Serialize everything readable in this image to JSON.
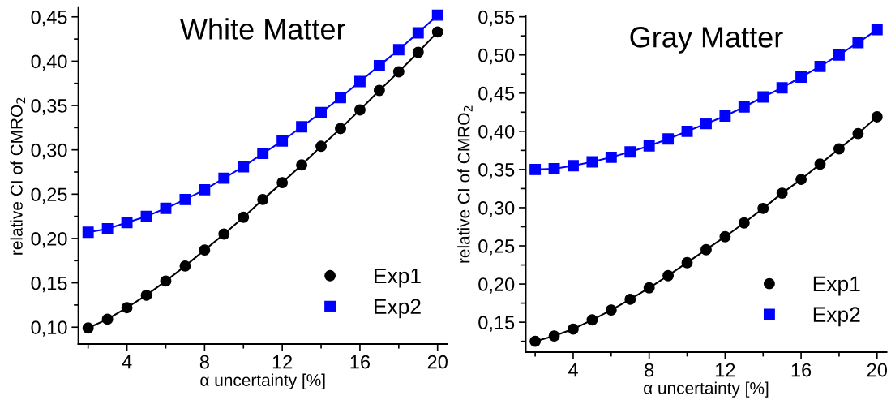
{
  "chart_data": [
    {
      "type": "line",
      "title": "White Matter",
      "xlabel": "α uncertainty [%]",
      "ylabel": "relative CI of CMRO$_{2}$",
      "x": [
        2,
        3,
        4,
        5,
        6,
        7,
        8,
        9,
        10,
        11,
        12,
        13,
        14,
        15,
        16,
        17,
        18,
        19,
        20
      ],
      "series": [
        {
          "name": "Exp1",
          "color": "#000000",
          "marker": "circle",
          "values": [
            0.099,
            0.109,
            0.122,
            0.136,
            0.152,
            0.169,
            0.187,
            0.205,
            0.224,
            0.244,
            0.263,
            0.283,
            0.304,
            0.324,
            0.345,
            0.367,
            0.388,
            0.41,
            0.433
          ]
        },
        {
          "name": "Exp2",
          "color": "#0000ff",
          "marker": "square",
          "values": [
            0.207,
            0.211,
            0.218,
            0.225,
            0.234,
            0.244,
            0.255,
            0.268,
            0.281,
            0.296,
            0.31,
            0.326,
            0.342,
            0.359,
            0.377,
            0.395,
            0.413,
            0.432,
            0.452
          ]
        }
      ],
      "xlim": [
        1.5,
        20.5
      ],
      "xticks": [
        4,
        8,
        12,
        16,
        20
      ],
      "ylim": [
        0.081,
        0.46
      ],
      "yticks": [
        {
          "value": 0.1,
          "label": "0,10"
        },
        {
          "value": 0.15,
          "label": "0,15"
        },
        {
          "value": 0.2,
          "label": "0,20"
        },
        {
          "value": 0.25,
          "label": "0,25"
        },
        {
          "value": 0.3,
          "label": "0,30"
        },
        {
          "value": 0.35,
          "label": "0,35"
        },
        {
          "value": 0.4,
          "label": "0,40"
        },
        {
          "value": 0.45,
          "label": "0,45"
        }
      ],
      "legend": "bottom right",
      "grid": false,
      "line_style": "solid"
    },
    {
      "type": "line",
      "title": "Gray Matter",
      "xlabel": "α uncertainty [%]",
      "ylabel": "relative CI of CMRO$_{2}$",
      "x": [
        2,
        3,
        4,
        5,
        6,
        7,
        8,
        9,
        10,
        11,
        12,
        13,
        14,
        15,
        16,
        17,
        18,
        19,
        20
      ],
      "series": [
        {
          "name": "Exp1",
          "color": "#000000",
          "marker": "circle",
          "values": [
            0.125,
            0.132,
            0.141,
            0.153,
            0.166,
            0.18,
            0.195,
            0.211,
            0.228,
            0.245,
            0.262,
            0.28,
            0.299,
            0.319,
            0.337,
            0.357,
            0.377,
            0.397,
            0.419
          ]
        },
        {
          "name": "Exp2",
          "color": "#0000ff",
          "marker": "square",
          "values": [
            0.35,
            0.351,
            0.355,
            0.36,
            0.366,
            0.373,
            0.381,
            0.39,
            0.4,
            0.41,
            0.42,
            0.432,
            0.445,
            0.457,
            0.471,
            0.485,
            0.5,
            0.516,
            0.533
          ]
        }
      ],
      "xlim": [
        1.5,
        20.5
      ],
      "xticks": [
        4,
        8,
        12,
        16,
        20
      ],
      "ylim": [
        0.111,
        0.551
      ],
      "yticks": [
        {
          "value": 0.15,
          "label": "0,15"
        },
        {
          "value": 0.2,
          "label": "0,20"
        },
        {
          "value": 0.25,
          "label": "0,25"
        },
        {
          "value": 0.3,
          "label": "0,30"
        },
        {
          "value": 0.35,
          "label": "0,35"
        },
        {
          "value": 0.4,
          "label": "0,40"
        },
        {
          "value": 0.45,
          "label": "0,45"
        },
        {
          "value": 0.5,
          "label": "0,50"
        },
        {
          "value": 0.55,
          "label": "0,55"
        }
      ],
      "legend": "bottom right",
      "grid": false,
      "line_style": "solid"
    }
  ]
}
